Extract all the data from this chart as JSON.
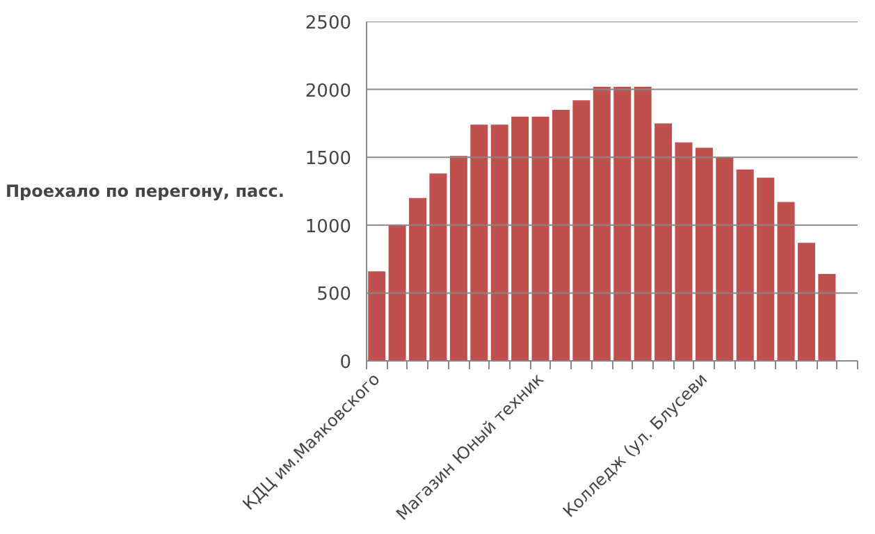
{
  "chart_data": {
    "type": "bar",
    "ylabel": "Проехало по перегону, пасс.",
    "categories": [
      "КДЦ им.Маяковского",
      null,
      null,
      null,
      null,
      null,
      null,
      null,
      "Магазин Юный техник",
      null,
      null,
      null,
      null,
      null,
      null,
      null,
      "Колледж (ул. Блусеви",
      null,
      null,
      null,
      null,
      null,
      null,
      null
    ],
    "values": [
      660,
      1000,
      1200,
      1380,
      1510,
      1740,
      1740,
      1800,
      1800,
      1850,
      1920,
      2020,
      2020,
      2020,
      1750,
      1610,
      1570,
      1500,
      1410,
      1350,
      1170,
      870,
      640,
      null
    ],
    "color": "#c0504d",
    "ylim": [
      0,
      2500
    ],
    "yticks": [
      0,
      500,
      1000,
      1500,
      2000,
      2500
    ],
    "grid": "y"
  }
}
